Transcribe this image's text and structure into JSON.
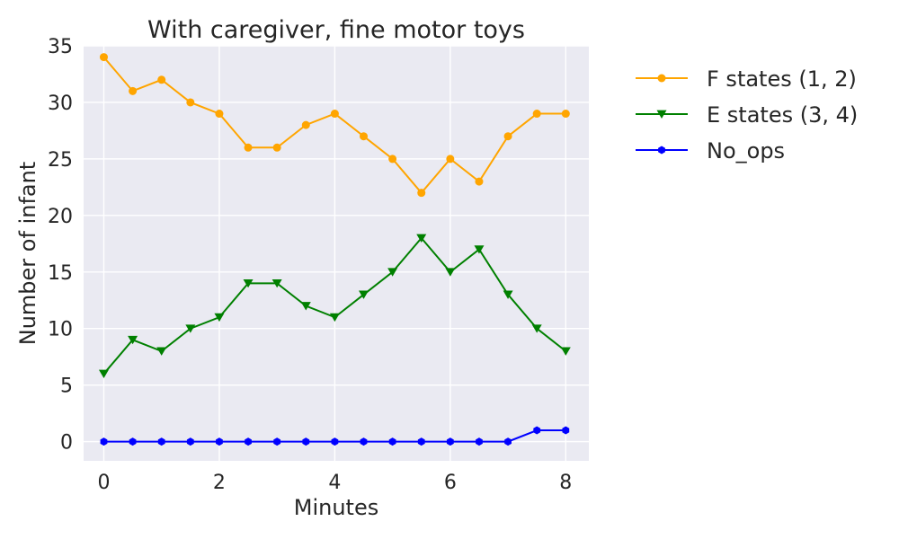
{
  "chart_data": {
    "type": "line",
    "title": "With caregiver, fine motor toys",
    "xlabel": "Minutes",
    "ylabel": "Number of infant",
    "xlim": [
      -0.35,
      8.4
    ],
    "ylim": [
      -1.7,
      35.0
    ],
    "xticks": [
      0,
      2,
      4,
      6,
      8
    ],
    "yticks": [
      0,
      5,
      10,
      15,
      20,
      25,
      30,
      35
    ],
    "grid": true,
    "legend_position": "outside-top-right",
    "x": [
      0,
      0.5,
      1,
      1.5,
      2,
      2.5,
      3,
      3.5,
      4,
      4.5,
      5,
      5.5,
      6,
      6.5,
      7,
      7.5,
      8
    ],
    "series": [
      {
        "name": "F states (1, 2)",
        "color": "#ffa500",
        "marker": "circle",
        "values": [
          34,
          31,
          32,
          30,
          29,
          26,
          26,
          28,
          29,
          27,
          25,
          22,
          25,
          23,
          27,
          29,
          29
        ]
      },
      {
        "name": "E states (3, 4)",
        "color": "#008000",
        "marker": "triangle-down",
        "values": [
          6,
          9,
          8,
          10,
          11,
          14,
          14,
          12,
          11,
          13,
          15,
          18,
          15,
          17,
          13,
          10,
          8
        ]
      },
      {
        "name": "No_ops",
        "color": "#0000ff",
        "marker": "hexagon",
        "values": [
          0,
          0,
          0,
          0,
          0,
          0,
          0,
          0,
          0,
          0,
          0,
          0,
          0,
          0,
          0,
          1,
          1
        ]
      }
    ]
  },
  "style": {
    "plot_background": "#eaeaf2",
    "grid_color": "#ffffff",
    "text_color": "#262626"
  }
}
